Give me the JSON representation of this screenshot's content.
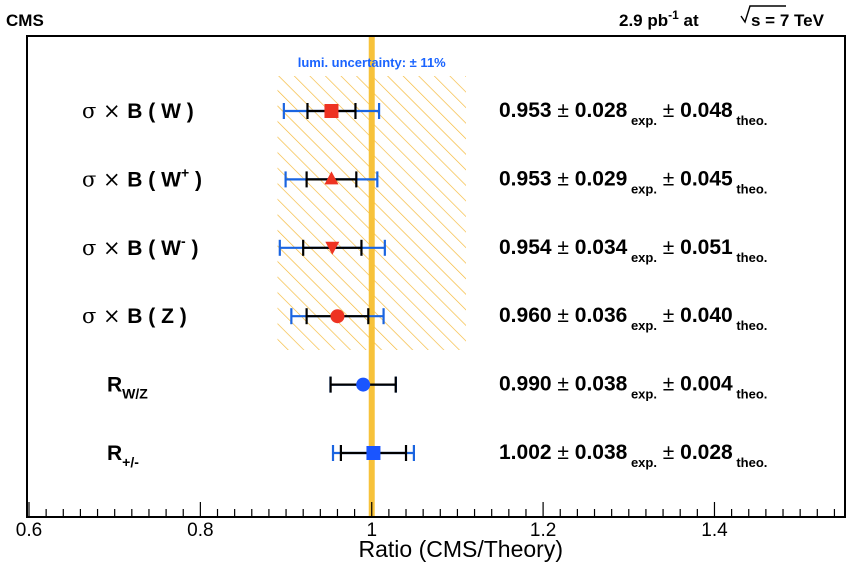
{
  "header": {
    "experiment": "CMS",
    "lumi_value": "2.9 pb",
    "lumi_exp": "-1",
    "lumi_at": " at ",
    "energy": "s = 7 TeV"
  },
  "lumi_band": {
    "label": "lumi. uncertainty: ± 11%",
    "center": 1.0,
    "half_width": 0.11,
    "band_color": "#f5b731",
    "line_color": "#f7c23a"
  },
  "colors": {
    "red": "#ee3322",
    "blue": "#1a55ff",
    "exp_bar": "#000000",
    "total_bar": "#1a64e0"
  },
  "chart_data": {
    "type": "scatter",
    "xlabel": "Ratio (CMS/Theory)",
    "xlim": [
      0.6,
      1.55
    ],
    "xticks": [
      "0.6",
      "0.8",
      "1",
      "1.2",
      "1.4"
    ],
    "xtick_values": [
      0.6,
      0.8,
      1.0,
      1.2,
      1.4
    ],
    "grid": false,
    "rows": [
      {
        "main": "B ( W )",
        "sup": "",
        "sub": "",
        "sigma": true,
        "value": 0.953,
        "exp": 0.028,
        "theo": 0.048,
        "value_text": "0.953",
        "exp_text": "0.028",
        "theo_text": "0.048",
        "exp_label": "exp.",
        "theo_label": "theo.",
        "marker": "square",
        "color": "red"
      },
      {
        "main": "B ( W",
        "sup": "+",
        "tail": " )",
        "sub": "",
        "sigma": true,
        "value": 0.953,
        "exp": 0.029,
        "theo": 0.045,
        "value_text": "0.953",
        "exp_text": "0.029",
        "theo_text": "0.045",
        "exp_label": "exp.",
        "theo_label": "theo.",
        "marker": "triangle-up",
        "color": "red"
      },
      {
        "main": "B ( W",
        "sup": "-",
        "tail": " )",
        "sub": "",
        "sigma": true,
        "value": 0.954,
        "exp": 0.034,
        "theo": 0.051,
        "value_text": "0.954",
        "exp_text": "0.034",
        "theo_text": "0.051",
        "exp_label": "exp.",
        "theo_label": "theo.",
        "marker": "triangle-down",
        "color": "red"
      },
      {
        "main": "B ( Z )",
        "sup": "",
        "sub": "",
        "sigma": true,
        "value": 0.96,
        "exp": 0.036,
        "theo": 0.04,
        "value_text": "0.960",
        "exp_text": "0.036",
        "theo_text": "0.040",
        "exp_label": "exp.",
        "theo_label": "theo.",
        "marker": "circle",
        "color": "red"
      },
      {
        "main": "R",
        "sup": "",
        "sub": "W/Z",
        "sigma": false,
        "value": 0.99,
        "exp": 0.038,
        "theo": 0.004,
        "value_text": "0.990",
        "exp_text": "0.038",
        "theo_text": "0.004",
        "exp_label": "exp.",
        "theo_label": "theo.",
        "marker": "circle",
        "color": "blue"
      },
      {
        "main": "R",
        "sup": "",
        "sub": "+/-",
        "sigma": false,
        "value": 1.002,
        "exp": 0.038,
        "theo": 0.028,
        "value_text": "1.002",
        "exp_text": "0.038",
        "theo_text": "0.028",
        "exp_label": "exp.",
        "theo_label": "theo.",
        "marker": "square",
        "color": "blue"
      }
    ]
  }
}
